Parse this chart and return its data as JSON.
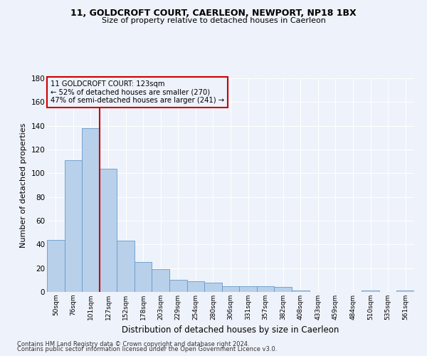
{
  "title1": "11, GOLDCROFT COURT, CAERLEON, NEWPORT, NP18 1BX",
  "title2": "Size of property relative to detached houses in Caerleon",
  "xlabel": "Distribution of detached houses by size in Caerleon",
  "ylabel": "Number of detached properties",
  "bar_labels": [
    "50sqm",
    "76sqm",
    "101sqm",
    "127sqm",
    "152sqm",
    "178sqm",
    "203sqm",
    "229sqm",
    "254sqm",
    "280sqm",
    "306sqm",
    "331sqm",
    "357sqm",
    "382sqm",
    "408sqm",
    "433sqm",
    "459sqm",
    "484sqm",
    "510sqm",
    "535sqm",
    "561sqm"
  ],
  "bar_values": [
    44,
    111,
    138,
    104,
    43,
    25,
    19,
    10,
    9,
    8,
    5,
    5,
    5,
    4,
    1,
    0,
    0,
    0,
    1,
    0,
    1
  ],
  "bar_color": "#b8d0ea",
  "bar_edge_color": "#6699cc",
  "property_line_x": 2.5,
  "annotation_line1": "11 GOLDCROFT COURT: 123sqm",
  "annotation_line2": "← 52% of detached houses are smaller (270)",
  "annotation_line3": "47% of semi-detached houses are larger (241) →",
  "vline_color": "#cc0000",
  "annotation_box_color": "#cc0000",
  "ylim": [
    0,
    180
  ],
  "yticks": [
    0,
    20,
    40,
    60,
    80,
    100,
    120,
    140,
    160,
    180
  ],
  "footer1": "Contains HM Land Registry data © Crown copyright and database right 2024.",
  "footer2": "Contains public sector information licensed under the Open Government Licence v3.0.",
  "background_color": "#eef2fa",
  "grid_color": "#ffffff"
}
